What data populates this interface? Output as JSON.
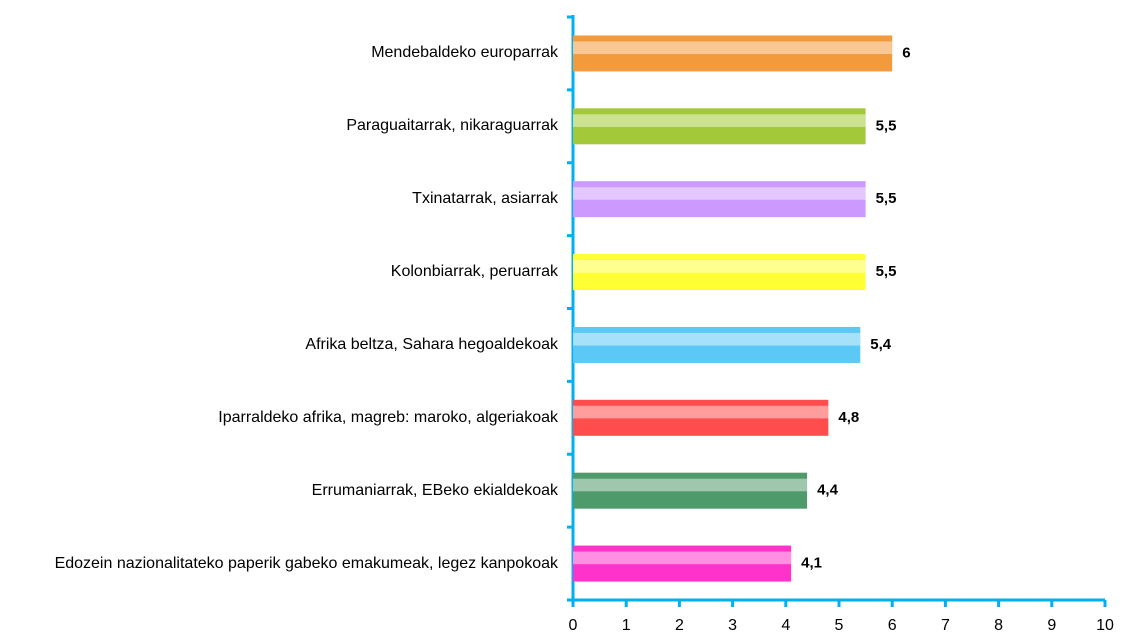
{
  "chart_data": {
    "type": "bar",
    "orientation": "horizontal",
    "categories": [
      "Mendebaldeko europarrak",
      "Paraguaitarrak, nikaraguarrak",
      "Txinatarrak, asiarrak",
      "Kolonbiarrak, peruarrak",
      "Afrika beltza, Sahara hegoaldekoak",
      "Iparraldeko afrika, magreb: maroko, algeriakoak",
      "Errumaniarrak, EBeko ekialdekoak",
      "Edozein nazionalitateko paperik gabeko emakumeak, legez kanpokoak"
    ],
    "values": [
      6,
      5.5,
      5.5,
      5.5,
      5.4,
      4.8,
      4.4,
      4.1
    ],
    "value_labels": [
      "6",
      "5,5",
      "5,5",
      "5,5",
      "5,4",
      "4,8",
      "4,4",
      "4,1"
    ],
    "colors": [
      "#f39a3c",
      "#a3c93a",
      "#cc99ff",
      "#ffff33",
      "#5cc8f5",
      "#ff4d4d",
      "#4f9a6a",
      "#ff33cc"
    ],
    "xlim": [
      0,
      10
    ],
    "xticks": [
      0,
      1,
      2,
      3,
      4,
      5,
      6,
      7,
      8,
      9,
      10
    ],
    "grid": false
  }
}
